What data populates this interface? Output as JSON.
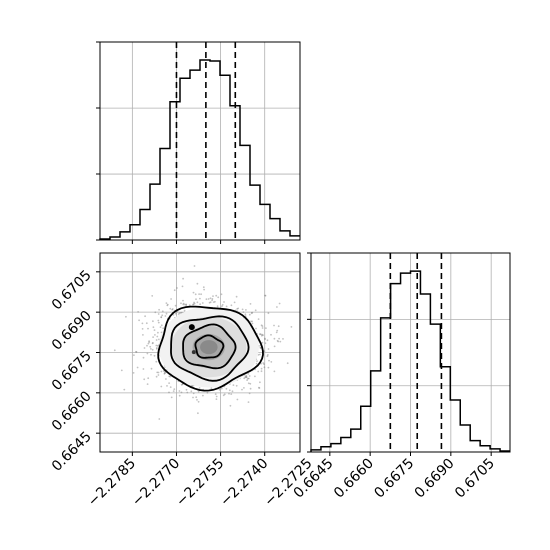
{
  "chart_data": [
    {
      "type": "histogram",
      "panel": "top-left",
      "xlim": [
        -2.2796,
        -2.2728
      ],
      "xticks": [
        -2.2785,
        -2.277,
        -2.2755,
        -2.274,
        -2.2725
      ],
      "xtick_labels": [
        "",
        "",
        "",
        "",
        ""
      ],
      "ytick_labels_visible": false,
      "grid": true,
      "bins_left": -2.2796,
      "bin_width": 0.00034,
      "counts": [
        0.1,
        0.3,
        0.8,
        1.5,
        3.0,
        5.5,
        9.0,
        13.6,
        15.9,
        16.7,
        17.7,
        17.6,
        16.2,
        13.2,
        9.3,
        5.4,
        3.5,
        2.1,
        0.9,
        0.4
      ],
      "quantile_lines": [
        -2.277,
        -2.276,
        -2.275
      ]
    },
    {
      "type": "scatter-density",
      "panel": "bottom-left",
      "xlim": [
        -2.2796,
        -2.2728
      ],
      "ylim": [
        0.6638,
        0.6712
      ],
      "xticks": [
        -2.2785,
        -2.277,
        -2.2755,
        -2.274,
        -2.2725
      ],
      "xtick_labels": [
        "−2.2785",
        "−2.2770",
        "−2.2755",
        "−2.2740",
        "−2.2725"
      ],
      "yticks": [
        0.6645,
        0.666,
        0.6675,
        0.669,
        0.6705
      ],
      "ytick_labels": [
        "0.6645",
        "0.6660",
        "0.6675",
        "0.6690",
        "0.6705"
      ],
      "grid": true,
      "center": [
        -2.2759,
        0.6677
      ],
      "spread_sd": [
        0.00085,
        0.00075
      ],
      "contour_levels": 4
    },
    {
      "type": "histogram",
      "panel": "bottom-right",
      "xlim": [
        0.6638,
        0.6712
      ],
      "xticks": [
        0.6645,
        0.666,
        0.6675,
        0.669,
        0.6705
      ],
      "xtick_labels": [
        "0.6645",
        "0.6660",
        "0.6675",
        "0.6690",
        "0.6705"
      ],
      "ytick_labels_visible": false,
      "grid": true,
      "bins_left": 0.6638,
      "bin_width": 0.00037,
      "counts": [
        0.2,
        0.5,
        0.8,
        1.4,
        2.2,
        4.4,
        7.8,
        12.9,
        16.2,
        17.2,
        17.4,
        15.2,
        12.3,
        8.2,
        5.0,
        2.6,
        1.1,
        0.6,
        0.3,
        0.1
      ],
      "quantile_lines": [
        0.66675,
        0.66775,
        0.66865
      ]
    }
  ]
}
